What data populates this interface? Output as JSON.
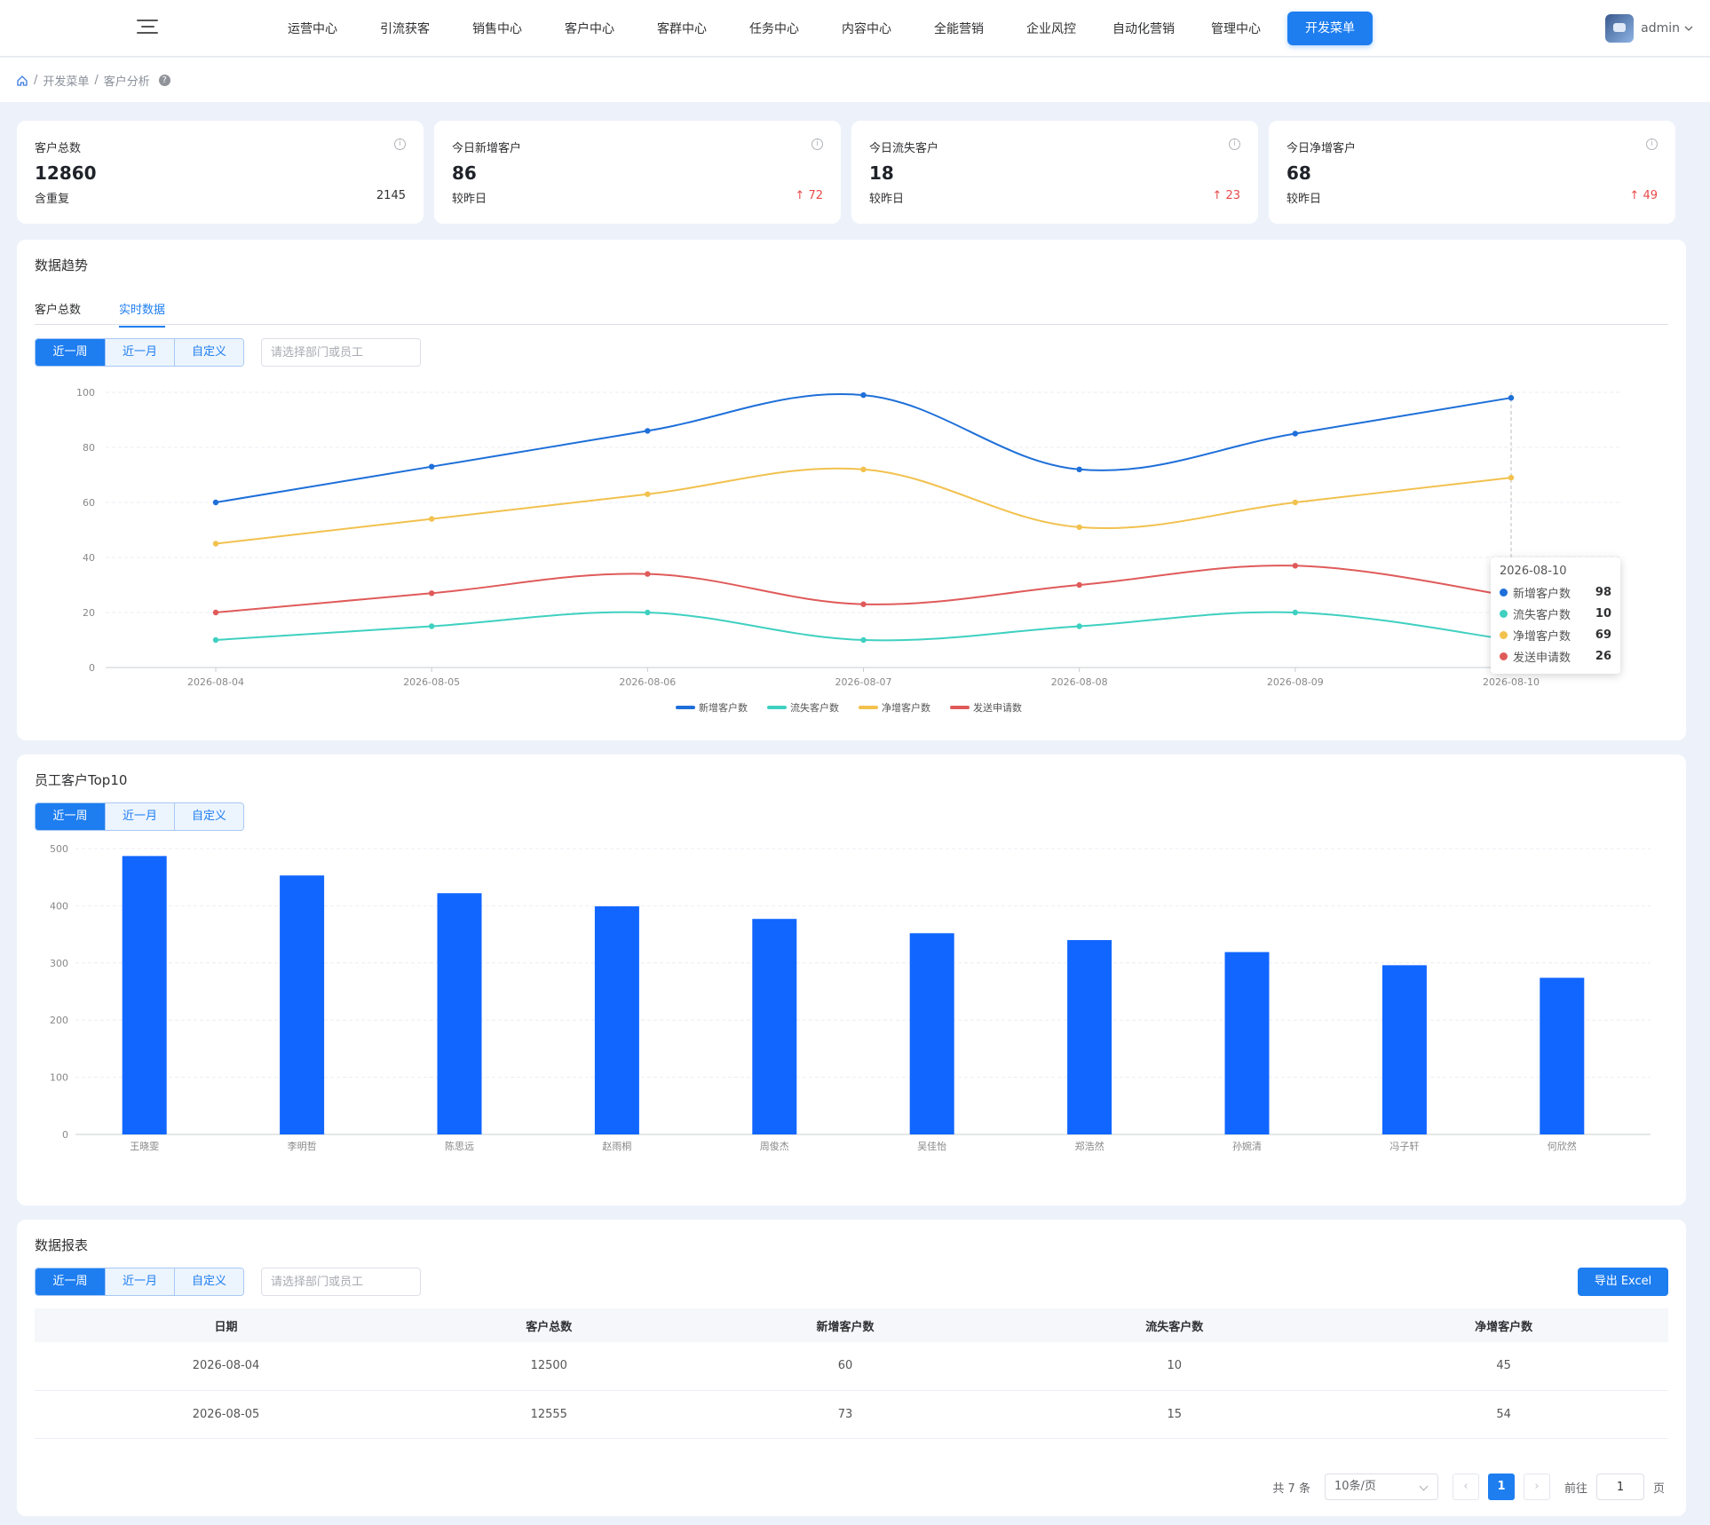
{
  "nav": {
    "items": [
      "运营中心",
      "引流获客",
      "销售中心",
      "客户中心",
      "客群中心",
      "任务中心",
      "内容中心",
      "全能营销",
      "企业风控",
      "自动化营销",
      "管理中心"
    ],
    "active_item": "开发菜单",
    "user": "admin"
  },
  "breadcrumb": [
    "开发菜单",
    "客户分析"
  ],
  "stats": [
    {
      "title": "客户总数",
      "value": "12860",
      "foot_label": "含重复",
      "foot_value": "2145",
      "arrow": ""
    },
    {
      "title": "今日新增客户",
      "value": "86",
      "foot_label": "较昨日",
      "foot_value": "72",
      "arrow": "↑"
    },
    {
      "title": "今日流失客户",
      "value": "18",
      "foot_label": "较昨日",
      "foot_value": "23",
      "arrow": "↑"
    },
    {
      "title": "今日净增客户",
      "value": "68",
      "foot_label": "较昨日",
      "foot_value": "49",
      "arrow": "↑"
    }
  ],
  "trend": {
    "title": "数据趋势",
    "tabs": [
      "客户总数",
      "实时数据"
    ],
    "range_buttons": [
      "近一周",
      "近一月",
      "自定义"
    ],
    "select_placeholder": "请选择部门或员工",
    "tooltip": {
      "date": "2026-08-10",
      "rows": [
        {
          "label": "新增客户数",
          "value": "98"
        },
        {
          "label": "流失客户数",
          "value": "10"
        },
        {
          "label": "净增客户数",
          "value": "69"
        },
        {
          "label": "发送申请数",
          "value": "26"
        }
      ]
    }
  },
  "top10": {
    "title": "员工客户Top10",
    "range_buttons": [
      "近一周",
      "近一月",
      "自定义"
    ]
  },
  "report": {
    "title": "数据报表",
    "range_buttons": [
      "近一周",
      "近一月",
      "自定义"
    ],
    "select_placeholder": "请选择部门或员工",
    "export_label": "导出 Excel",
    "columns": [
      "日期",
      "客户总数",
      "新增客户数",
      "流失客户数",
      "净增客户数"
    ],
    "rows": [
      [
        "2026-08-04",
        "12500",
        "60",
        "10",
        "45"
      ],
      [
        "2026-08-05",
        "12555",
        "73",
        "15",
        "54"
      ]
    ],
    "pager": {
      "total": "共 7 条",
      "page_size": "10条/页",
      "current": "1",
      "goto_label": "前往",
      "goto_value": "1",
      "page_unit": "页"
    }
  },
  "chart_data": [
    {
      "type": "line",
      "x": [
        "2026-08-04",
        "2026-08-05",
        "2026-08-06",
        "2026-08-07",
        "2026-08-08",
        "2026-08-09",
        "2026-08-10"
      ],
      "ylim": [
        0,
        100
      ],
      "yticks": [
        0,
        20,
        40,
        60,
        80,
        100
      ],
      "legend": "bottom",
      "series": [
        {
          "name": "新增客户数",
          "color": "#1e6fd9",
          "values": [
            60,
            73,
            86,
            99,
            72,
            85,
            98
          ]
        },
        {
          "name": "流失客户数",
          "color": "#3fd0c0",
          "values": [
            10,
            15,
            20,
            10,
            15,
            20,
            10
          ]
        },
        {
          "name": "净增客户数",
          "color": "#f2c14e",
          "values": [
            45,
            54,
            63,
            72,
            51,
            60,
            69
          ]
        },
        {
          "name": "发送申请数",
          "color": "#e05a5a",
          "values": [
            20,
            27,
            34,
            23,
            30,
            37,
            26
          ]
        }
      ]
    },
    {
      "type": "bar",
      "color": "#1166ff",
      "categories": [
        "王晓雯",
        "李明哲",
        "陈思远",
        "赵雨桐",
        "周俊杰",
        "吴佳怡",
        "郑浩然",
        "孙婉清",
        "冯子轩",
        "何欣然"
      ],
      "values": [
        487,
        453,
        422,
        399,
        377,
        352,
        340,
        319,
        296,
        274
      ],
      "ylim": [
        0,
        500
      ],
      "yticks": [
        0,
        100,
        200,
        300,
        400,
        500
      ]
    }
  ]
}
